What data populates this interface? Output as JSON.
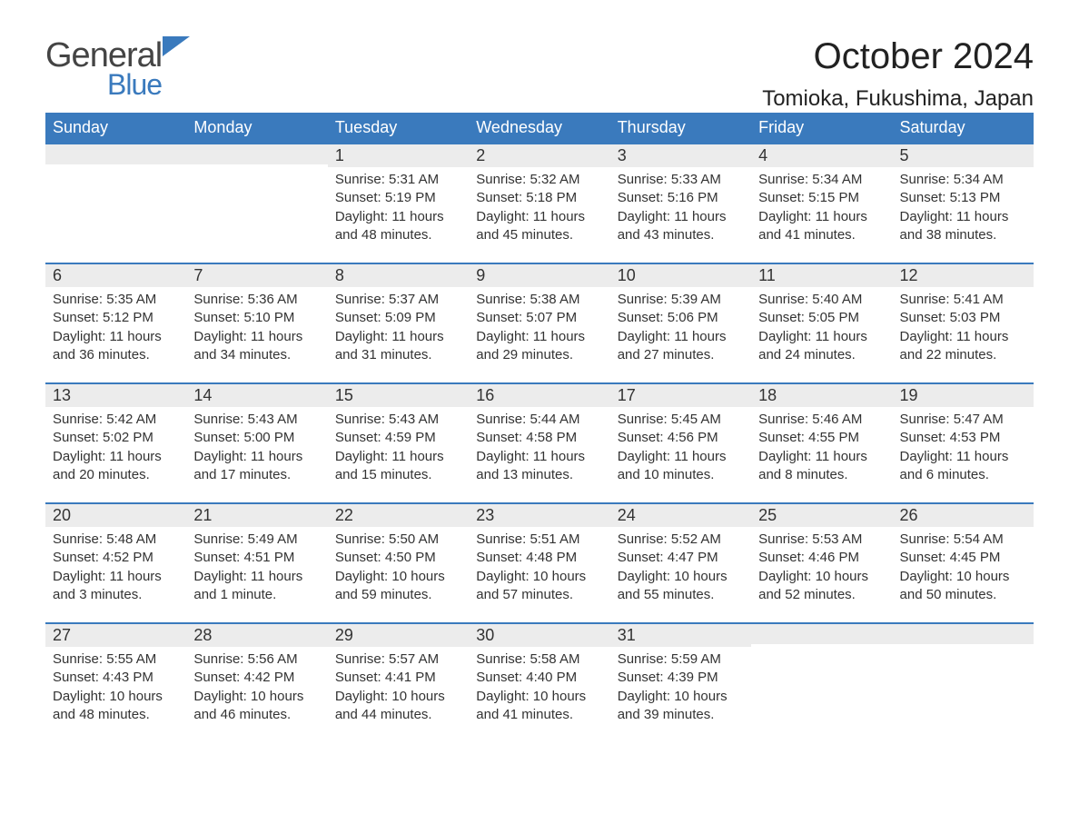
{
  "brand": {
    "part1": "General",
    "part2": "Blue",
    "accent": "#3a7abd"
  },
  "title": "October 2024",
  "location": "Tomioka, Fukushima, Japan",
  "colors": {
    "header_bg": "#3a7abd",
    "header_text": "#ffffff",
    "daynum_bg": "#ececec",
    "border_top": "#3a7abd",
    "body_text": "#333333",
    "page_bg": "#ffffff"
  },
  "typography": {
    "title_fontsize": 40,
    "location_fontsize": 24,
    "header_fontsize": 18,
    "daynum_fontsize": 18,
    "body_fontsize": 15
  },
  "calendar": {
    "type": "table",
    "columns": [
      "Sunday",
      "Monday",
      "Tuesday",
      "Wednesday",
      "Thursday",
      "Friday",
      "Saturday"
    ],
    "weeks": [
      [
        null,
        null,
        {
          "n": "1",
          "sunrise": "5:31 AM",
          "sunset": "5:19 PM",
          "daylight": "11 hours and 48 minutes."
        },
        {
          "n": "2",
          "sunrise": "5:32 AM",
          "sunset": "5:18 PM",
          "daylight": "11 hours and 45 minutes."
        },
        {
          "n": "3",
          "sunrise": "5:33 AM",
          "sunset": "5:16 PM",
          "daylight": "11 hours and 43 minutes."
        },
        {
          "n": "4",
          "sunrise": "5:34 AM",
          "sunset": "5:15 PM",
          "daylight": "11 hours and 41 minutes."
        },
        {
          "n": "5",
          "sunrise": "5:34 AM",
          "sunset": "5:13 PM",
          "daylight": "11 hours and 38 minutes."
        }
      ],
      [
        {
          "n": "6",
          "sunrise": "5:35 AM",
          "sunset": "5:12 PM",
          "daylight": "11 hours and 36 minutes."
        },
        {
          "n": "7",
          "sunrise": "5:36 AM",
          "sunset": "5:10 PM",
          "daylight": "11 hours and 34 minutes."
        },
        {
          "n": "8",
          "sunrise": "5:37 AM",
          "sunset": "5:09 PM",
          "daylight": "11 hours and 31 minutes."
        },
        {
          "n": "9",
          "sunrise": "5:38 AM",
          "sunset": "5:07 PM",
          "daylight": "11 hours and 29 minutes."
        },
        {
          "n": "10",
          "sunrise": "5:39 AM",
          "sunset": "5:06 PM",
          "daylight": "11 hours and 27 minutes."
        },
        {
          "n": "11",
          "sunrise": "5:40 AM",
          "sunset": "5:05 PM",
          "daylight": "11 hours and 24 minutes."
        },
        {
          "n": "12",
          "sunrise": "5:41 AM",
          "sunset": "5:03 PM",
          "daylight": "11 hours and 22 minutes."
        }
      ],
      [
        {
          "n": "13",
          "sunrise": "5:42 AM",
          "sunset": "5:02 PM",
          "daylight": "11 hours and 20 minutes."
        },
        {
          "n": "14",
          "sunrise": "5:43 AM",
          "sunset": "5:00 PM",
          "daylight": "11 hours and 17 minutes."
        },
        {
          "n": "15",
          "sunrise": "5:43 AM",
          "sunset": "4:59 PM",
          "daylight": "11 hours and 15 minutes."
        },
        {
          "n": "16",
          "sunrise": "5:44 AM",
          "sunset": "4:58 PM",
          "daylight": "11 hours and 13 minutes."
        },
        {
          "n": "17",
          "sunrise": "5:45 AM",
          "sunset": "4:56 PM",
          "daylight": "11 hours and 10 minutes."
        },
        {
          "n": "18",
          "sunrise": "5:46 AM",
          "sunset": "4:55 PM",
          "daylight": "11 hours and 8 minutes."
        },
        {
          "n": "19",
          "sunrise": "5:47 AM",
          "sunset": "4:53 PM",
          "daylight": "11 hours and 6 minutes."
        }
      ],
      [
        {
          "n": "20",
          "sunrise": "5:48 AM",
          "sunset": "4:52 PM",
          "daylight": "11 hours and 3 minutes."
        },
        {
          "n": "21",
          "sunrise": "5:49 AM",
          "sunset": "4:51 PM",
          "daylight": "11 hours and 1 minute."
        },
        {
          "n": "22",
          "sunrise": "5:50 AM",
          "sunset": "4:50 PM",
          "daylight": "10 hours and 59 minutes."
        },
        {
          "n": "23",
          "sunrise": "5:51 AM",
          "sunset": "4:48 PM",
          "daylight": "10 hours and 57 minutes."
        },
        {
          "n": "24",
          "sunrise": "5:52 AM",
          "sunset": "4:47 PM",
          "daylight": "10 hours and 55 minutes."
        },
        {
          "n": "25",
          "sunrise": "5:53 AM",
          "sunset": "4:46 PM",
          "daylight": "10 hours and 52 minutes."
        },
        {
          "n": "26",
          "sunrise": "5:54 AM",
          "sunset": "4:45 PM",
          "daylight": "10 hours and 50 minutes."
        }
      ],
      [
        {
          "n": "27",
          "sunrise": "5:55 AM",
          "sunset": "4:43 PM",
          "daylight": "10 hours and 48 minutes."
        },
        {
          "n": "28",
          "sunrise": "5:56 AM",
          "sunset": "4:42 PM",
          "daylight": "10 hours and 46 minutes."
        },
        {
          "n": "29",
          "sunrise": "5:57 AM",
          "sunset": "4:41 PM",
          "daylight": "10 hours and 44 minutes."
        },
        {
          "n": "30",
          "sunrise": "5:58 AM",
          "sunset": "4:40 PM",
          "daylight": "10 hours and 41 minutes."
        },
        {
          "n": "31",
          "sunrise": "5:59 AM",
          "sunset": "4:39 PM",
          "daylight": "10 hours and 39 minutes."
        },
        null,
        null
      ]
    ],
    "labels": {
      "sunrise": "Sunrise:",
      "sunset": "Sunset:",
      "daylight": "Daylight:"
    }
  }
}
